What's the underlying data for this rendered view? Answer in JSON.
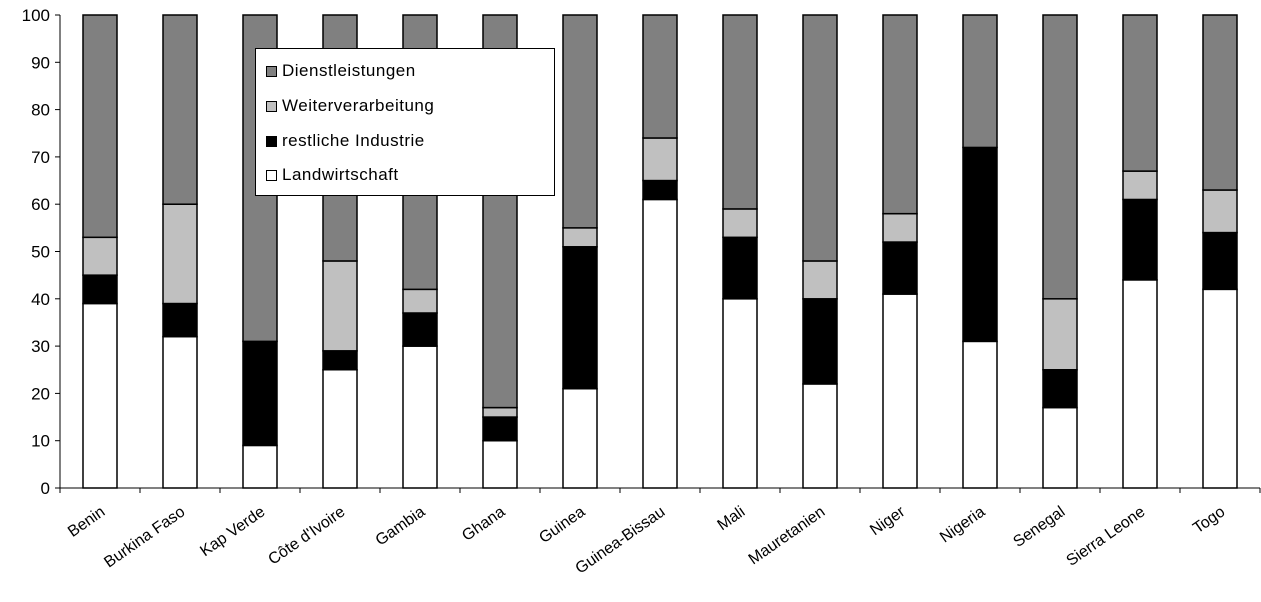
{
  "chart_data": {
    "type": "bar",
    "stacked": true,
    "categories": [
      "Benin",
      "Burkina Faso",
      "Kap Verde",
      "Côte d'Ivoire",
      "Gambia",
      "Ghana",
      "Guinea",
      "Guinea-Bissau",
      "Mali",
      "Mauretanien",
      "Niger",
      "Nigeria",
      "Senegal",
      "Sierra Leone",
      "Togo"
    ],
    "series": [
      {
        "name": "Landwirtschaft",
        "color": "#ffffff",
        "values": [
          39,
          32,
          9,
          25,
          30,
          10,
          21,
          61,
          40,
          22,
          41,
          31,
          17,
          44,
          42
        ]
      },
      {
        "name": "restliche Industrie",
        "color": "#000000",
        "values": [
          6,
          7,
          22,
          4,
          7,
          5,
          30,
          4,
          13,
          18,
          11,
          41,
          8,
          17,
          12
        ]
      },
      {
        "name": "Weiterverarbeitung",
        "color": "#c0c0c0",
        "values": [
          8,
          21,
          0,
          19,
          5,
          2,
          4,
          9,
          6,
          8,
          6,
          0,
          15,
          6,
          9
        ]
      },
      {
        "name": "Dienstleistungen",
        "color": "#808080",
        "values": [
          47,
          40,
          69,
          52,
          58,
          83,
          45,
          26,
          41,
          52,
          42,
          28,
          60,
          33,
          37
        ]
      }
    ],
    "legend_order": [
      "Dienstleistungen",
      "Weiterverarbeitung",
      "restliche Industrie",
      "Landwirtschaft"
    ],
    "legend_position": "top-left-inside",
    "title": "",
    "xlabel": "",
    "ylabel": "",
    "ylim": [
      0,
      100
    ],
    "yticks": [
      0,
      10,
      20,
      30,
      40,
      50,
      60,
      70,
      80,
      90,
      100
    ],
    "grid": false
  }
}
